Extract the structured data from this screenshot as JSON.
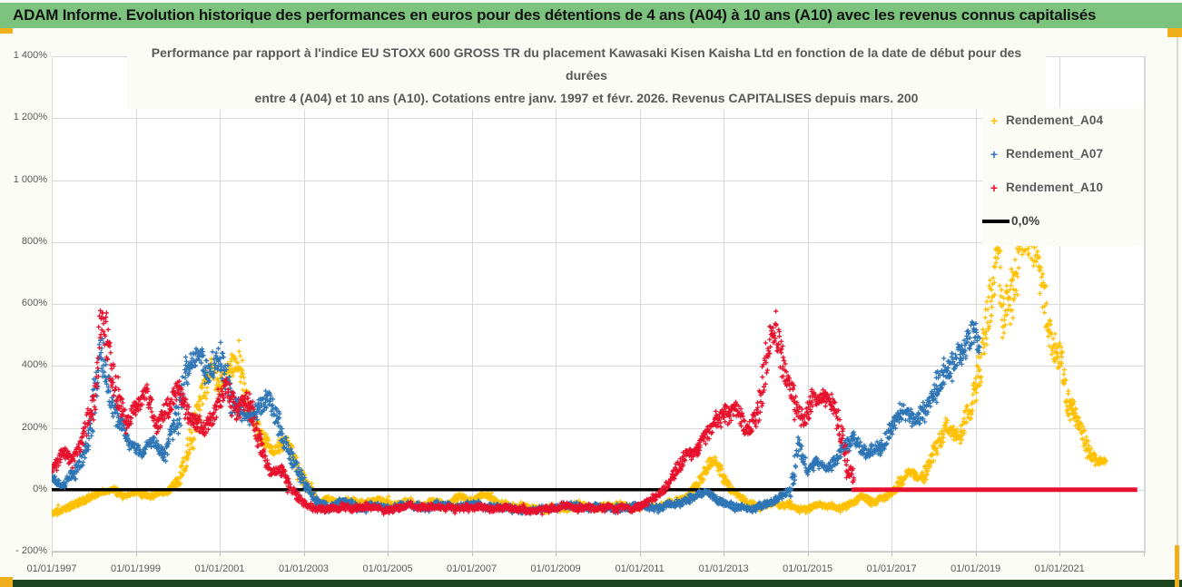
{
  "header": {
    "title": "ADAM Informe. Evolution historique des performances en euros pour des détentions de 4 ans (A04) à 10 ans (A10) avec les revenus connus capitalisés"
  },
  "chart_data": {
    "type": "scatter",
    "title_lines": [
      "Performance par rapport à l'indice EU STOXX 600 GROSS TR  du placement Kawasaki Kisen Kaisha Ltd en fonction de la date de début pour des",
      "durées",
      "entre 4 (A04) et 10 ans (A10). Cotations entre janv. 1997 et févr. 2026. Revenus CAPITALISES depuis mars. 200"
    ],
    "x_tick_labels": [
      "01/01/1997",
      "01/01/1999",
      "01/01/2001",
      "01/01/2003",
      "01/01/2005",
      "01/01/2007",
      "01/01/2009",
      "01/01/2011",
      "01/01/2013",
      "01/01/2015",
      "01/01/2017",
      "01/01/2019",
      "01/01/2021"
    ],
    "x_tick_years": [
      1997,
      1999,
      2001,
      2003,
      2005,
      2007,
      2009,
      2011,
      2013,
      2015,
      2017,
      2019,
      2021
    ],
    "y_tick_labels": [
      "1 400%",
      "1 200%",
      "1 000%",
      "800%",
      "600%",
      "400%",
      "200%",
      "0%",
      "- 200%"
    ],
    "y_tick_values": [
      1400,
      1200,
      1000,
      800,
      600,
      400,
      200,
      0,
      -200
    ],
    "ylim": [
      -200,
      1400
    ],
    "xlim_years": [
      1997.0,
      2023.05
    ],
    "grid": true,
    "legend_position": "inside-top-right",
    "legend": [
      {
        "label": "Rendement_A04",
        "color": "#FFC000",
        "marker": "plus"
      },
      {
        "label": "Rendement_A07",
        "color": "#2E75B6",
        "marker": "plus"
      },
      {
        "label": "Rendement_A10",
        "color": "#E8112D",
        "marker": "plus"
      },
      {
        "label": "0,0%",
        "color": "#000000",
        "marker": "line"
      }
    ],
    "zero_line": {
      "value": 0,
      "color": "#000000",
      "from_year": 1997.0,
      "to_year": 2016.05
    },
    "a10_flat_segment": {
      "value": 0,
      "color": "#E8112D",
      "from_year": 2016.05,
      "to_year": 2022.85
    },
    "series": [
      {
        "name": "Rendement_A04",
        "color": "#FFC000",
        "seed": 11,
        "keypoints": [
          [
            1997.0,
            -75
          ],
          [
            1997.4,
            -55
          ],
          [
            1997.8,
            -32
          ],
          [
            1998.1,
            -8
          ],
          [
            1998.4,
            4
          ],
          [
            1998.7,
            -18
          ],
          [
            1999.0,
            -8
          ],
          [
            1999.3,
            -22
          ],
          [
            1999.7,
            -12
          ],
          [
            2000.0,
            25
          ],
          [
            2000.3,
            140
          ],
          [
            2000.55,
            280
          ],
          [
            2000.8,
            400
          ],
          [
            2001.0,
            330
          ],
          [
            2001.2,
            375
          ],
          [
            2001.45,
            415
          ],
          [
            2001.7,
            260
          ],
          [
            2002.0,
            170
          ],
          [
            2002.3,
            120
          ],
          [
            2002.6,
            155
          ],
          [
            2002.9,
            60
          ],
          [
            2003.1,
            10
          ],
          [
            2003.35,
            -45
          ],
          [
            2003.6,
            -25
          ],
          [
            2003.9,
            -50
          ],
          [
            2004.2,
            -30
          ],
          [
            2004.5,
            -45
          ],
          [
            2004.8,
            -28
          ],
          [
            2005.1,
            -55
          ],
          [
            2005.4,
            -40
          ],
          [
            2005.8,
            -52
          ],
          [
            2006.1,
            -38
          ],
          [
            2006.4,
            -52
          ],
          [
            2006.7,
            -24
          ],
          [
            2007.0,
            -32
          ],
          [
            2007.3,
            -18
          ],
          [
            2007.6,
            -42
          ],
          [
            2008.0,
            -55
          ],
          [
            2008.4,
            -62
          ],
          [
            2008.8,
            -68
          ],
          [
            2009.2,
            -58
          ],
          [
            2009.5,
            -48
          ],
          [
            2009.8,
            -58
          ],
          [
            2010.2,
            -52
          ],
          [
            2010.6,
            -58
          ],
          [
            2011.0,
            -50
          ],
          [
            2011.4,
            -56
          ],
          [
            2011.8,
            -42
          ],
          [
            2012.1,
            -25
          ],
          [
            2012.4,
            20
          ],
          [
            2012.65,
            85
          ],
          [
            2012.8,
            95
          ],
          [
            2013.0,
            35
          ],
          [
            2013.2,
            -5
          ],
          [
            2013.5,
            -35
          ],
          [
            2013.8,
            -52
          ],
          [
            2014.2,
            -42
          ],
          [
            2014.6,
            -55
          ],
          [
            2015.0,
            -62
          ],
          [
            2015.4,
            -50
          ],
          [
            2015.7,
            -58
          ],
          [
            2016.0,
            -45
          ],
          [
            2016.3,
            -22
          ],
          [
            2016.6,
            -42
          ],
          [
            2016.9,
            -20
          ],
          [
            2017.1,
            5
          ],
          [
            2017.4,
            55
          ],
          [
            2017.7,
            35
          ],
          [
            2018.0,
            120
          ],
          [
            2018.3,
            210
          ],
          [
            2018.6,
            170
          ],
          [
            2018.9,
            280
          ],
          [
            2019.1,
            380
          ],
          [
            2019.35,
            600
          ],
          [
            2019.5,
            790
          ],
          [
            2019.65,
            560
          ],
          [
            2019.85,
            640
          ],
          [
            2020.1,
            780
          ],
          [
            2020.35,
            785
          ],
          [
            2020.6,
            640
          ],
          [
            2020.8,
            480
          ],
          [
            2021.0,
            420
          ],
          [
            2021.2,
            290
          ],
          [
            2021.45,
            210
          ],
          [
            2021.7,
            120
          ],
          [
            2021.9,
            85
          ],
          [
            2022.1,
            95
          ]
        ]
      },
      {
        "name": "Rendement_A07",
        "color": "#2E75B6",
        "seed": 22,
        "keypoints": [
          [
            1997.0,
            40
          ],
          [
            1997.3,
            15
          ],
          [
            1997.6,
            70
          ],
          [
            1997.9,
            160
          ],
          [
            1998.15,
            460
          ],
          [
            1998.3,
            380
          ],
          [
            1998.5,
            250
          ],
          [
            1998.8,
            160
          ],
          [
            1999.1,
            120
          ],
          [
            1999.4,
            150
          ],
          [
            1999.7,
            110
          ],
          [
            2000.0,
            240
          ],
          [
            2000.25,
            400
          ],
          [
            2000.5,
            430
          ],
          [
            2000.75,
            370
          ],
          [
            2001.0,
            420
          ],
          [
            2001.3,
            290
          ],
          [
            2001.6,
            230
          ],
          [
            2001.9,
            265
          ],
          [
            2002.2,
            290
          ],
          [
            2002.5,
            170
          ],
          [
            2002.8,
            80
          ],
          [
            2003.0,
            25
          ],
          [
            2003.3,
            -35
          ],
          [
            2003.6,
            -55
          ],
          [
            2003.9,
            -40
          ],
          [
            2004.3,
            -58
          ],
          [
            2004.7,
            -48
          ],
          [
            2005.1,
            -60
          ],
          [
            2005.5,
            -50
          ],
          [
            2005.9,
            -58
          ],
          [
            2006.3,
            -48
          ],
          [
            2006.7,
            -55
          ],
          [
            2007.1,
            -45
          ],
          [
            2007.5,
            -58
          ],
          [
            2008.0,
            -62
          ],
          [
            2008.5,
            -68
          ],
          [
            2009.0,
            -58
          ],
          [
            2009.3,
            -48
          ],
          [
            2009.7,
            -60
          ],
          [
            2010.1,
            -55
          ],
          [
            2010.5,
            -62
          ],
          [
            2011.0,
            -52
          ],
          [
            2011.5,
            -58
          ],
          [
            2012.0,
            -42
          ],
          [
            2012.35,
            -15
          ],
          [
            2012.6,
            -8
          ],
          [
            2012.9,
            -35
          ],
          [
            2013.2,
            -55
          ],
          [
            2013.6,
            -62
          ],
          [
            2014.0,
            -45
          ],
          [
            2014.35,
            -25
          ],
          [
            2014.6,
            5
          ],
          [
            2014.8,
            145
          ],
          [
            2015.0,
            60
          ],
          [
            2015.2,
            95
          ],
          [
            2015.5,
            70
          ],
          [
            2015.8,
            120
          ],
          [
            2016.1,
            170
          ],
          [
            2016.4,
            110
          ],
          [
            2016.7,
            130
          ],
          [
            2017.0,
            200
          ],
          [
            2017.3,
            260
          ],
          [
            2017.6,
            230
          ],
          [
            2017.9,
            290
          ],
          [
            2018.2,
            360
          ],
          [
            2018.5,
            420
          ],
          [
            2018.75,
            470
          ],
          [
            2018.95,
            520
          ],
          [
            2019.1,
            480
          ]
        ]
      },
      {
        "name": "Rendement_A10",
        "color": "#E8112D",
        "seed": 33,
        "keypoints": [
          [
            1997.0,
            60
          ],
          [
            1997.25,
            120
          ],
          [
            1997.5,
            95
          ],
          [
            1997.75,
            170
          ],
          [
            1998.0,
            280
          ],
          [
            1998.2,
            545
          ],
          [
            1998.35,
            420
          ],
          [
            1998.55,
            300
          ],
          [
            1998.8,
            220
          ],
          [
            1999.0,
            260
          ],
          [
            1999.25,
            310
          ],
          [
            1999.5,
            210
          ],
          [
            1999.75,
            260
          ],
          [
            2000.0,
            320
          ],
          [
            2000.3,
            240
          ],
          [
            2000.6,
            195
          ],
          [
            2000.9,
            260
          ],
          [
            2001.15,
            345
          ],
          [
            2001.4,
            250
          ],
          [
            2001.6,
            300
          ],
          [
            2001.8,
            230
          ],
          [
            2002.0,
            120
          ],
          [
            2002.2,
            60
          ],
          [
            2002.45,
            70
          ],
          [
            2002.65,
            10
          ],
          [
            2002.9,
            -35
          ],
          [
            2003.2,
            -55
          ],
          [
            2003.5,
            -62
          ],
          [
            2003.9,
            -55
          ],
          [
            2004.3,
            -62
          ],
          [
            2004.7,
            -55
          ],
          [
            2005.1,
            -62
          ],
          [
            2005.5,
            -55
          ],
          [
            2005.9,
            -62
          ],
          [
            2006.3,
            -55
          ],
          [
            2006.7,
            -60
          ],
          [
            2007.1,
            -52
          ],
          [
            2007.5,
            -60
          ],
          [
            2008.0,
            -62
          ],
          [
            2008.5,
            -68
          ],
          [
            2009.0,
            -60
          ],
          [
            2009.3,
            -50
          ],
          [
            2009.7,
            -62
          ],
          [
            2010.1,
            -58
          ],
          [
            2010.5,
            -62
          ],
          [
            2011.0,
            -55
          ],
          [
            2011.3,
            -35
          ],
          [
            2011.6,
            0
          ],
          [
            2011.85,
            50
          ],
          [
            2012.1,
            120
          ],
          [
            2012.4,
            130
          ],
          [
            2012.7,
            195
          ],
          [
            2013.0,
            240
          ],
          [
            2013.3,
            265
          ],
          [
            2013.55,
            185
          ],
          [
            2013.8,
            250
          ],
          [
            2013.95,
            350
          ],
          [
            2014.1,
            490
          ],
          [
            2014.25,
            500
          ],
          [
            2014.45,
            380
          ],
          [
            2014.7,
            280
          ],
          [
            2014.9,
            210
          ],
          [
            2015.1,
            290
          ],
          [
            2015.35,
            300
          ],
          [
            2015.6,
            290
          ],
          [
            2015.8,
            180
          ],
          [
            2015.95,
            80
          ],
          [
            2016.1,
            30
          ]
        ]
      }
    ]
  },
  "colors": {
    "header_bg": "#7CC47E",
    "accent_gold": "#EFAF1C",
    "footer_bar": "#1E441F",
    "page_bg": "#FCFCF7",
    "plot_bg": "#FFFFFF",
    "grid": "#D9D9D9",
    "axis_line": "#BFBFBF",
    "axis_text": "#595959",
    "title_text": "#595959"
  }
}
